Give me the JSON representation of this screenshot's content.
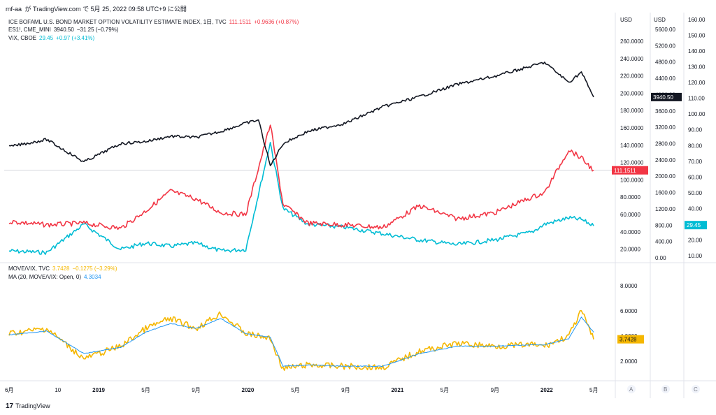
{
  "header": {
    "user": "mf-aa",
    "text": "が TradingView.com で 5月 25, 2022 09:58 UTC+9 に公開"
  },
  "legend_top": [
    {
      "name": "ICE BOFAML U.S. BOND MARKET OPTION VOLATILITY ESTIMATE INDEX, 1日, TVC",
      "value": "111.1511",
      "change": "+0.9636 (+0.87%)",
      "color": "#f23645"
    },
    {
      "name": "ES1!, CME_MINI",
      "value": "3940.50",
      "change": "−31.25 (−0.79%)",
      "color": "#131722"
    },
    {
      "name": "VIX, CBOE",
      "value": "29.45",
      "change": "+0.97 (+3.41%)",
      "color": "#00bcd4"
    }
  ],
  "legend_bottom": [
    {
      "name": "MOVE/VIX, TVC",
      "value": "3.7428",
      "change": "−0.1275 (−3.29%)",
      "color": "#f5b700"
    },
    {
      "name": "MA (20, MOVE/VIX: Open, 0)",
      "value": "4.3034",
      "change": "",
      "color": "#2196f3"
    }
  ],
  "axes": {
    "move": {
      "unit": "USD",
      "ticks": [
        "260.0000",
        "240.0000",
        "220.0000",
        "200.0000",
        "180.0000",
        "160.0000",
        "140.0000",
        "120.0000",
        "100.0000",
        "80.0000",
        "60.0000",
        "40.0000",
        "20.0000"
      ]
    },
    "es": {
      "unit": "USD",
      "ticks": [
        "5600.00",
        "5200.00",
        "4800.00",
        "4400.00",
        "4000.00",
        "3600.00",
        "3200.00",
        "2800.00",
        "2400.00",
        "2000.00",
        "1600.00",
        "1200.00",
        "800.00",
        "400.00",
        "0.00"
      ]
    },
    "vix": {
      "ticks": [
        "160.00",
        "150.00",
        "140.00",
        "130.00",
        "120.00",
        "110.00",
        "100.00",
        "90.00",
        "80.00",
        "70.00",
        "60.00",
        "50.00",
        "40.00",
        "30.00",
        "20.00",
        "10.00"
      ]
    },
    "ratio": {
      "ticks": [
        "8.0000",
        "6.0000",
        "4.0000",
        "2.0000"
      ]
    }
  },
  "price_tags": {
    "es": "3940.50",
    "move": "111.1511",
    "vix": "29.45",
    "ratio": "3.7428"
  },
  "x_labels": [
    "6月",
    "10",
    "2019",
    "5月",
    "9月",
    "2020",
    "5月",
    "9月",
    "2021",
    "5月",
    "9月",
    "2022",
    "5月"
  ],
  "scale_buttons": [
    "A",
    "B",
    "C"
  ],
  "branding": "TradingView",
  "chart_data": {
    "type": "line",
    "x_range": [
      "2018-06",
      "2022-05-25"
    ],
    "panes": [
      {
        "series": [
          {
            "name": "ICE BOFAML U.S. BOND MARKET OPTION VOLATILITY ESTIMATE INDEX",
            "color": "#f23645",
            "x": [
              "2018-06",
              "2018-09",
              "2018-12",
              "2019-03",
              "2019-05",
              "2019-07",
              "2019-09",
              "2019-11",
              "2020-01",
              "2020-03",
              "2020-04",
              "2020-06",
              "2020-09",
              "2020-12",
              "2021-03",
              "2021-06",
              "2021-09",
              "2021-12",
              "2022-01",
              "2022-03",
              "2022-04",
              "2022-05"
            ],
            "values": [
              52,
              48,
              50,
              44,
              64,
              87,
              78,
              62,
              60,
              164,
              72,
              50,
              48,
              45,
              70,
              55,
              62,
              80,
              85,
              135,
              125,
              111
            ]
          },
          {
            "name": "ES1!, CME_MINI",
            "color": "#131722",
            "x": [
              "2018-06",
              "2018-09",
              "2018-12",
              "2019-03",
              "2019-05",
              "2019-07",
              "2019-09",
              "2019-11",
              "2020-01",
              "2020-02",
              "2020-03",
              "2020-04",
              "2020-06",
              "2020-09",
              "2020-12",
              "2021-03",
              "2021-06",
              "2021-09",
              "2021-12",
              "2022-01",
              "2022-03",
              "2022-04",
              "2022-05"
            ],
            "values": [
              2720,
              2900,
              2350,
              2800,
              2850,
              2980,
              2950,
              3100,
              3300,
              3380,
              2250,
              2800,
              3100,
              3300,
              3700,
              3950,
              4250,
              4450,
              4700,
              4790,
              4300,
              4550,
              3940
            ]
          },
          {
            "name": "VIX, CBOE",
            "color": "#00bcd4",
            "x": [
              "2018-06",
              "2018-09",
              "2018-12",
              "2019-03",
              "2019-05",
              "2019-07",
              "2019-09",
              "2019-11",
              "2020-01",
              "2020-03",
              "2020-04",
              "2020-06",
              "2020-09",
              "2020-12",
              "2021-03",
              "2021-06",
              "2021-09",
              "2021-12",
              "2022-01",
              "2022-03",
              "2022-04",
              "2022-05"
            ],
            "values": [
              13,
              12,
              30,
              14,
              18,
              16,
              18,
              13,
              14,
              82,
              40,
              30,
              28,
              24,
              20,
              17,
              20,
              25,
              30,
              34,
              33,
              29
            ]
          }
        ]
      },
      {
        "series": [
          {
            "name": "MOVE/VIX, TVC",
            "color": "#f5b700",
            "x": [
              "2018-06",
              "2018-09",
              "2018-12",
              "2019-03",
              "2019-05",
              "2019-07",
              "2019-09",
              "2019-11",
              "2020-01",
              "2020-03",
              "2020-04",
              "2020-06",
              "2020-09",
              "2020-12",
              "2021-03",
              "2021-06",
              "2021-09",
              "2021-12",
              "2022-01",
              "2022-03",
              "2022-04",
              "2022-05"
            ],
            "values": [
              4.2,
              4.6,
              2.2,
              3.2,
              4.6,
              5.4,
              4.6,
              5.8,
              4.2,
              3.8,
              1.4,
              1.7,
              1.6,
              1.5,
              2.8,
              3.4,
              3.2,
              3.3,
              3.2,
              4.0,
              6.0,
              3.74
            ]
          },
          {
            "name": "MA (20, MOVE/VIX: Open, 0)",
            "color": "#2196f3",
            "x": [
              "2018-06",
              "2018-09",
              "2018-12",
              "2019-03",
              "2019-05",
              "2019-07",
              "2019-09",
              "2019-11",
              "2020-01",
              "2020-03",
              "2020-04",
              "2020-06",
              "2020-09",
              "2020-12",
              "2021-03",
              "2021-06",
              "2021-09",
              "2021-12",
              "2022-01",
              "2022-03",
              "2022-04",
              "2022-05"
            ],
            "values": [
              4.1,
              4.4,
              2.6,
              3.1,
              4.3,
              5.0,
              4.6,
              5.4,
              4.2,
              3.9,
              1.6,
              1.7,
              1.6,
              1.6,
              2.6,
              3.2,
              3.2,
              3.3,
              3.3,
              3.8,
              5.5,
              4.3
            ]
          }
        ]
      }
    ]
  }
}
